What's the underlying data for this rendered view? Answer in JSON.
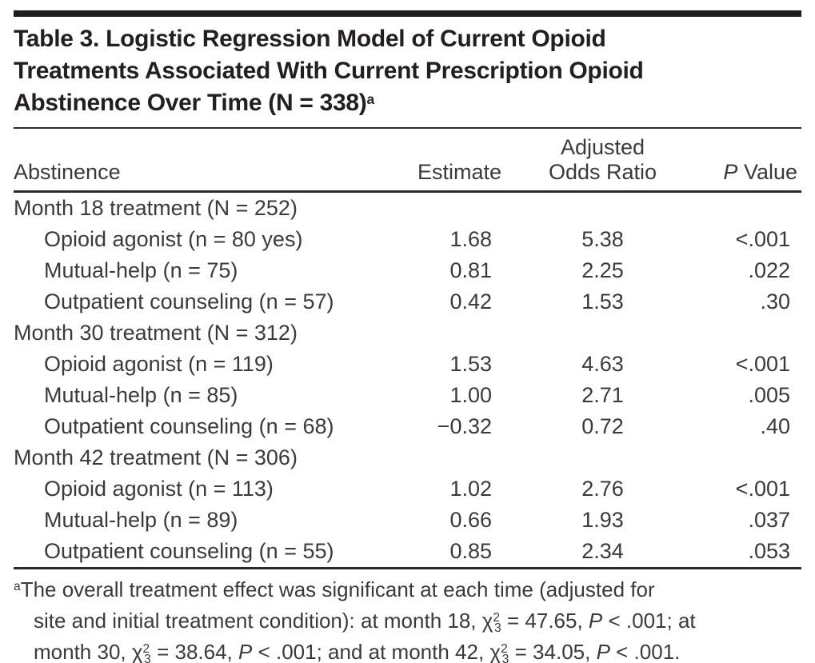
{
  "colors": {
    "background": "#ffffff",
    "title_text": "#231f20",
    "body_text": "#3a3a3a",
    "rule": "#1f1d1e"
  },
  "table": {
    "title_segments": [
      {
        "text": "Table 3. Logistic Regression Model of Current Opioid"
      },
      {
        "tag": "br"
      },
      {
        "text": "Treatments Associated With Current Prescription Opioid"
      },
      {
        "tag": "br"
      },
      {
        "text": "Abstinence Over Time (N = 338)"
      },
      {
        "text": "a",
        "tag": "sup"
      }
    ],
    "header": {
      "abstinence": "Abstinence",
      "estimate": "Estimate",
      "adjusted_line1": "Adjusted",
      "adjusted_line2": "Odds Ratio",
      "p_value_segments": [
        {
          "text": "P",
          "tag": "i"
        },
        {
          "text": " Value"
        }
      ]
    },
    "rows": [
      {
        "type": "section",
        "label": "Month 18 treatment (N = 252)",
        "estimate": "",
        "odds_ratio": "",
        "p_value": ""
      },
      {
        "type": "item",
        "label": "Opioid agonist (n = 80 yes)",
        "estimate": "1.68",
        "odds_ratio": "5.38",
        "p_value": "<.001"
      },
      {
        "type": "item",
        "label": "Mutual-help (n = 75)",
        "estimate": "0.81",
        "odds_ratio": "2.25",
        "p_value": ".022"
      },
      {
        "type": "item",
        "label": "Outpatient counseling (n = 57)",
        "estimate": "0.42",
        "odds_ratio": "1.53",
        "p_value": ".30"
      },
      {
        "type": "section",
        "label": "Month 30 treatment (N = 312)",
        "estimate": "",
        "odds_ratio": "",
        "p_value": ""
      },
      {
        "type": "item",
        "label": "Opioid agonist (n = 119)",
        "estimate": "1.53",
        "odds_ratio": "4.63",
        "p_value": "<.001"
      },
      {
        "type": "item",
        "label": "Mutual-help (n = 85)",
        "estimate": "1.00",
        "odds_ratio": "2.71",
        "p_value": ".005"
      },
      {
        "type": "item",
        "label": "Outpatient counseling (n = 68)",
        "estimate": "−0.32",
        "odds_ratio": "0.72",
        "p_value": ".40"
      },
      {
        "type": "section",
        "label": "Month 42 treatment (N = 306)",
        "estimate": "",
        "odds_ratio": "",
        "p_value": ""
      },
      {
        "type": "item",
        "label": "Opioid agonist (n = 113)",
        "estimate": "1.02",
        "odds_ratio": "2.76",
        "p_value": "<.001"
      },
      {
        "type": "item",
        "label": "Mutual-help (n = 89)",
        "estimate": "0.66",
        "odds_ratio": "1.93",
        "p_value": ".037"
      },
      {
        "type": "item",
        "label": "Outpatient counseling (n = 55)",
        "estimate": "0.85",
        "odds_ratio": "2.34",
        "p_value": ".053"
      }
    ],
    "footnote_segments": [
      {
        "text": "a",
        "tag": "sup"
      },
      {
        "text": "The overall treatment effect was significant at each time (adjusted for"
      },
      {
        "tag": "br"
      },
      {
        "text": "site and initial treatment condition): at month 18, χ"
      },
      {
        "text": "2",
        "tag": "sup"
      },
      {
        "text": "3",
        "tag": "sub",
        "class": "tuck"
      },
      {
        "text": " = 47.65, "
      },
      {
        "text": "P",
        "tag": "i"
      },
      {
        "text": " < .001; at"
      },
      {
        "tag": "br"
      },
      {
        "text": "month 30, χ"
      },
      {
        "text": "2",
        "tag": "sup"
      },
      {
        "text": "3",
        "tag": "sub",
        "class": "tuck"
      },
      {
        "text": " = 38.64, "
      },
      {
        "text": "P",
        "tag": "i"
      },
      {
        "text": " < .001; and at month 42, χ"
      },
      {
        "text": "2",
        "tag": "sup"
      },
      {
        "text": "3",
        "tag": "sub",
        "class": "tuck"
      },
      {
        "text": " = 34.05, "
      },
      {
        "text": "P",
        "tag": "i"
      },
      {
        "text": " < .001."
      }
    ]
  }
}
